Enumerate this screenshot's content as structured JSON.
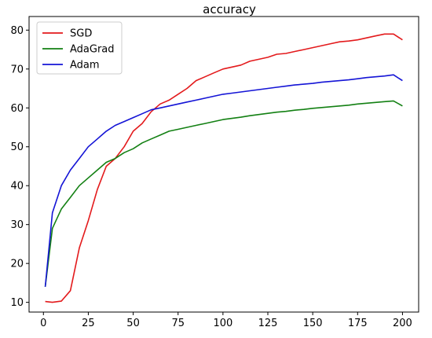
{
  "chart_data": {
    "type": "line",
    "title": "accuracy",
    "xlabel": "",
    "ylabel": "",
    "xlim": [
      -8,
      209
    ],
    "ylim": [
      7.5,
      83.5
    ],
    "x_ticks": [
      0,
      25,
      50,
      75,
      100,
      125,
      150,
      175,
      200
    ],
    "y_ticks": [
      10,
      20,
      30,
      40,
      50,
      60,
      70,
      80
    ],
    "grid": false,
    "legend_position": "top-left",
    "x": [
      1,
      5,
      10,
      15,
      20,
      25,
      30,
      35,
      40,
      45,
      50,
      55,
      60,
      65,
      70,
      75,
      80,
      85,
      90,
      95,
      100,
      105,
      110,
      115,
      120,
      125,
      130,
      135,
      140,
      145,
      150,
      155,
      160,
      165,
      170,
      175,
      180,
      185,
      190,
      195,
      200
    ],
    "series": [
      {
        "name": "SGD",
        "color": "#e31a1c",
        "values": [
          10.2,
          10,
          10.3,
          13,
          24,
          31,
          39,
          45,
          47,
          50,
          54,
          56,
          59,
          61,
          62,
          63.5,
          65,
          67,
          68,
          69,
          70,
          70.5,
          71,
          72,
          72.5,
          73,
          73.8,
          74,
          74.5,
          75,
          75.5,
          76,
          76.5,
          77,
          77.2,
          77.5,
          78,
          78.5,
          79,
          79,
          77.5
        ]
      },
      {
        "name": "AdaGrad",
        "color": "#138013",
        "values": [
          14,
          29,
          34,
          37,
          40,
          42,
          44,
          46,
          47,
          48.5,
          49.5,
          51,
          52,
          53,
          54,
          54.5,
          55,
          55.5,
          56,
          56.5,
          57,
          57.3,
          57.6,
          58,
          58.3,
          58.6,
          58.9,
          59.1,
          59.4,
          59.6,
          59.9,
          60.1,
          60.3,
          60.5,
          60.7,
          61,
          61.2,
          61.4,
          61.6,
          61.8,
          60.5
        ]
      },
      {
        "name": "Adam",
        "color": "#1414d6",
        "values": [
          14,
          33,
          40,
          44,
          47,
          50,
          52,
          54,
          55.5,
          56.5,
          57.5,
          58.5,
          59.5,
          60,
          60.5,
          61,
          61.5,
          62,
          62.5,
          63,
          63.5,
          63.8,
          64.1,
          64.4,
          64.7,
          65,
          65.3,
          65.6,
          65.9,
          66.1,
          66.3,
          66.6,
          66.8,
          67,
          67.2,
          67.5,
          67.8,
          68,
          68.2,
          68.5,
          67
        ]
      }
    ]
  }
}
